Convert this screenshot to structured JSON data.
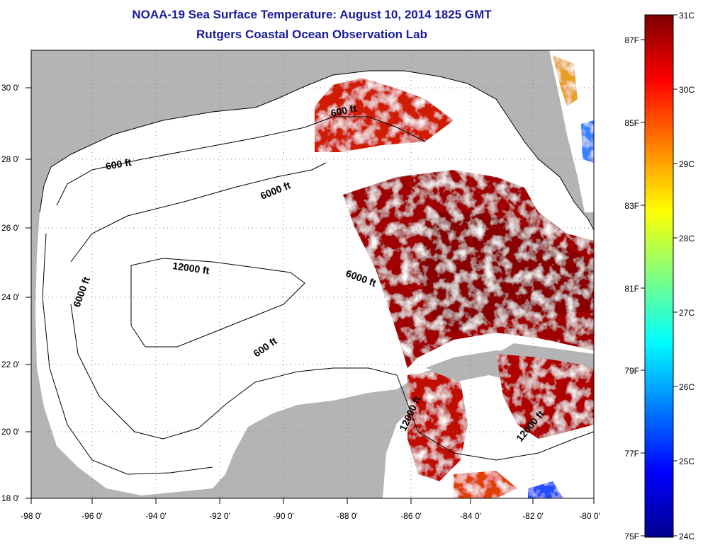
{
  "title": {
    "line1": "NOAA-19 Sea Surface Temperature:  August 10, 2014 1825 GMT",
    "line2": "Rutgers Coastal Ocean Observation Lab"
  },
  "map": {
    "lon_labels": [
      "-98 0'",
      "-96 0'",
      "-94 0'",
      "-92 0'",
      "-90 0'",
      "-88 0'",
      "-86 0'",
      "-84 0'",
      "-82 0'",
      "-80 0'"
    ],
    "lat_labels": [
      "30 0'",
      "28 0'",
      "26 0'",
      "24 0'",
      "22 0'",
      "20 0'",
      "18 0'"
    ],
    "contour_labels": [
      "600 ft",
      "600 ft",
      "6000 ft",
      "6000 ft",
      "12000 ft",
      "6000 ft",
      "600 ft",
      "12000 ft",
      "12000 ft"
    ]
  },
  "colorbar": {
    "celsius_labels": [
      "31C",
      "30C",
      "29C",
      "28C",
      "27C",
      "26C",
      "25C",
      "24C"
    ],
    "fahrenheit_labels": [
      "87F",
      "85F",
      "83F",
      "81F",
      "79F",
      "77F",
      "75F"
    ],
    "colors": [
      "#7f0000",
      "#ff0000",
      "#ff8000",
      "#ffff00",
      "#80ff80",
      "#00ffff",
      "#0080ff",
      "#0000ff",
      "#00008f"
    ]
  }
}
